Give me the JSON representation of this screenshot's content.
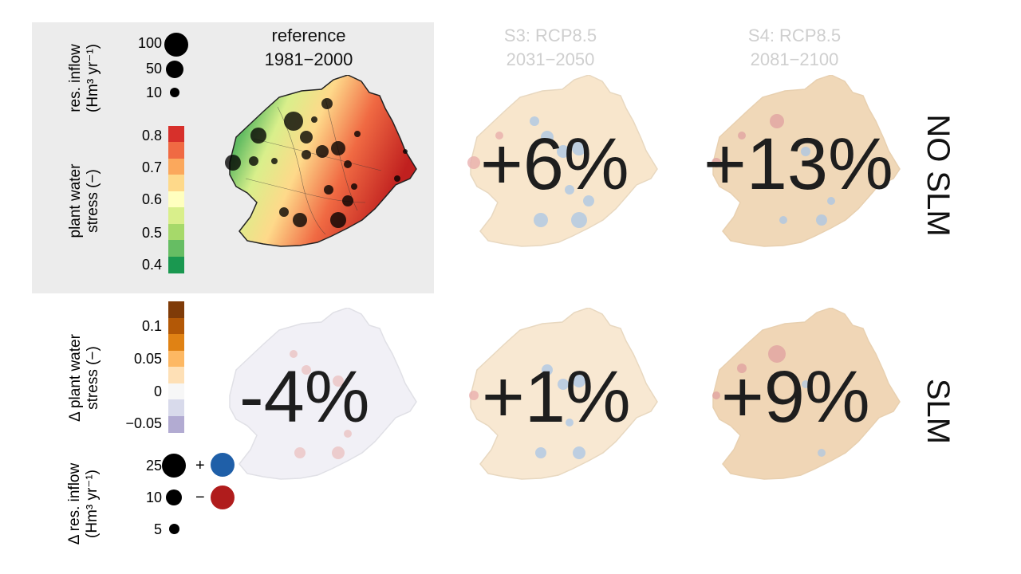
{
  "panels": {
    "reference": {
      "title_line1": "reference",
      "title_line2": "1981−2000"
    },
    "s3": {
      "title_line1": "S3: RCP8.5",
      "title_line2": "2031−2050"
    },
    "s4": {
      "title_line1": "S4: RCP8.5",
      "title_line2": "2081−2100"
    }
  },
  "changes": {
    "no_slm_s3": "+6%",
    "no_slm_s4": "+13%",
    "slm_ref": "-4%",
    "slm_s3": "+1%",
    "slm_s4": "+9%"
  },
  "row_labels": {
    "top": "NO SLM",
    "bottom": "SLM"
  },
  "legend_inflow": {
    "label_line1": "res. inflow",
    "label_unit": "(Hm³ yr⁻¹)",
    "sizes": [
      "100",
      "50",
      "10"
    ]
  },
  "legend_stress": {
    "label_line1": "plant water",
    "label_line2": "stress (−)",
    "ticks": [
      "0.8",
      "0.7",
      "0.6",
      "0.5",
      "0.4"
    ],
    "colors": [
      "#d7302b",
      "#f06a43",
      "#fba85c",
      "#fed98a",
      "#ffffbf",
      "#d9ef8b",
      "#a6d96a",
      "#66bd63",
      "#1a9850"
    ]
  },
  "legend_dstress": {
    "label_line1": "Δ plant water",
    "label_line2": "stress (−)",
    "ticks": [
      "0.1",
      "0.05",
      "0",
      "−0.05"
    ],
    "colors": [
      "#7f3b08",
      "#b35806",
      "#e08214",
      "#fdb863",
      "#fee0b6",
      "#f7f7f7",
      "#d8daeb",
      "#b2abd2"
    ]
  },
  "legend_dinflow": {
    "label_line1": "Δ res. inflow",
    "label_unit": "(Hm³ yr⁻¹)",
    "sizes": [
      "25",
      "10",
      "5"
    ],
    "plus": "+",
    "minus": "−",
    "plus_color": "#1f5fa8",
    "minus_color": "#b01c1c"
  }
}
